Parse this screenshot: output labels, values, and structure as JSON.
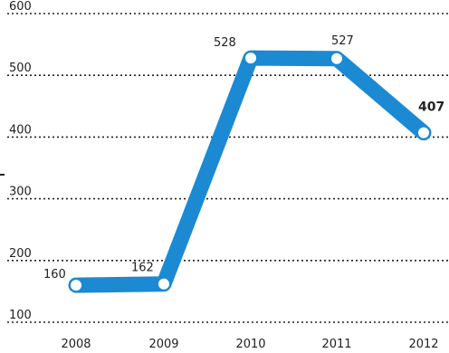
{
  "chart_data": {
    "type": "line",
    "title": "",
    "xlabel": "",
    "ylabel": "",
    "x": [
      "2008",
      "2009",
      "2010",
      "2011",
      "2012"
    ],
    "series": [
      {
        "values": [
          160,
          162,
          528,
          527,
          407
        ],
        "color": "#1b8ad3"
      }
    ],
    "data_labels": [
      "160",
      "162",
      "528",
      "527",
      "407"
    ],
    "highlighted_label_index": 4,
    "yticks": [
      "100",
      "200",
      "300",
      "400",
      "500",
      "600"
    ],
    "ylim": [
      100,
      600
    ],
    "grid": true,
    "legend": "none"
  }
}
